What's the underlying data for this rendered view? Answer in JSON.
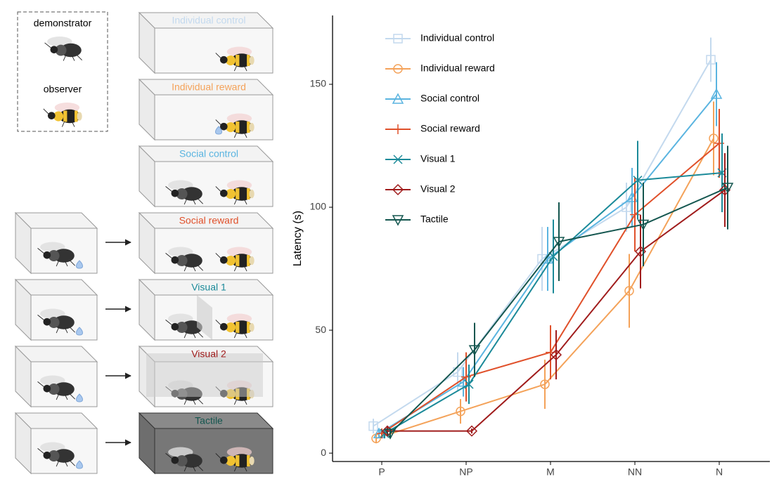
{
  "diagram": {
    "legend": {
      "demonstrator": "demonstrator",
      "observer": "observer"
    },
    "conditions": [
      "Individual control",
      "Individual reward",
      "Social control",
      "Social reward",
      "Visual 1",
      "Visual 2",
      "Tactile"
    ]
  },
  "chart_data": {
    "type": "line",
    "y_label": "Latency (s)",
    "categories": [
      "P",
      "NP",
      "M",
      "NN",
      "N"
    ],
    "ylim": [
      -3.4,
      178
    ],
    "yticks": [
      0,
      50,
      100,
      150
    ],
    "legend": "top-left",
    "series": [
      {
        "name": "Individual control",
        "color": "#c3d9ee",
        "marker": "square",
        "values": [
          11,
          33,
          79,
          100,
          160
        ],
        "errors": [
          3,
          8,
          13,
          10,
          9
        ]
      },
      {
        "name": "Individual reward",
        "color": "#f4a259",
        "marker": "circle",
        "values": [
          6,
          17,
          28,
          66,
          128
        ],
        "errors": [
          2,
          5,
          10,
          15,
          15
        ]
      },
      {
        "name": "Social control",
        "color": "#5ab4e0",
        "marker": "triangle",
        "values": [
          8,
          29,
          79,
          104,
          146
        ],
        "errors": [
          2,
          6,
          13,
          12,
          13
        ]
      },
      {
        "name": "Social reward",
        "color": "#e0502a",
        "marker": "plus",
        "values": [
          8,
          31,
          41,
          97,
          126
        ],
        "errors": [
          2,
          10,
          11,
          15,
          14
        ]
      },
      {
        "name": "Visual 1",
        "color": "#1b8a99",
        "marker": "x",
        "values": [
          8,
          28,
          80,
          111,
          114
        ],
        "errors": [
          2,
          8,
          15,
          16,
          16
        ]
      },
      {
        "name": "Visual 2",
        "color": "#a01c1c",
        "marker": "diamond",
        "values": [
          9,
          9,
          40,
          82,
          107
        ],
        "errors": [
          2,
          1,
          10,
          15,
          15
        ]
      },
      {
        "name": "Tactile",
        "color": "#14564f",
        "marker": "down-triangle",
        "values": [
          8,
          42,
          86,
          93,
          108
        ],
        "errors": [
          2,
          11,
          16,
          17,
          17
        ]
      }
    ]
  }
}
